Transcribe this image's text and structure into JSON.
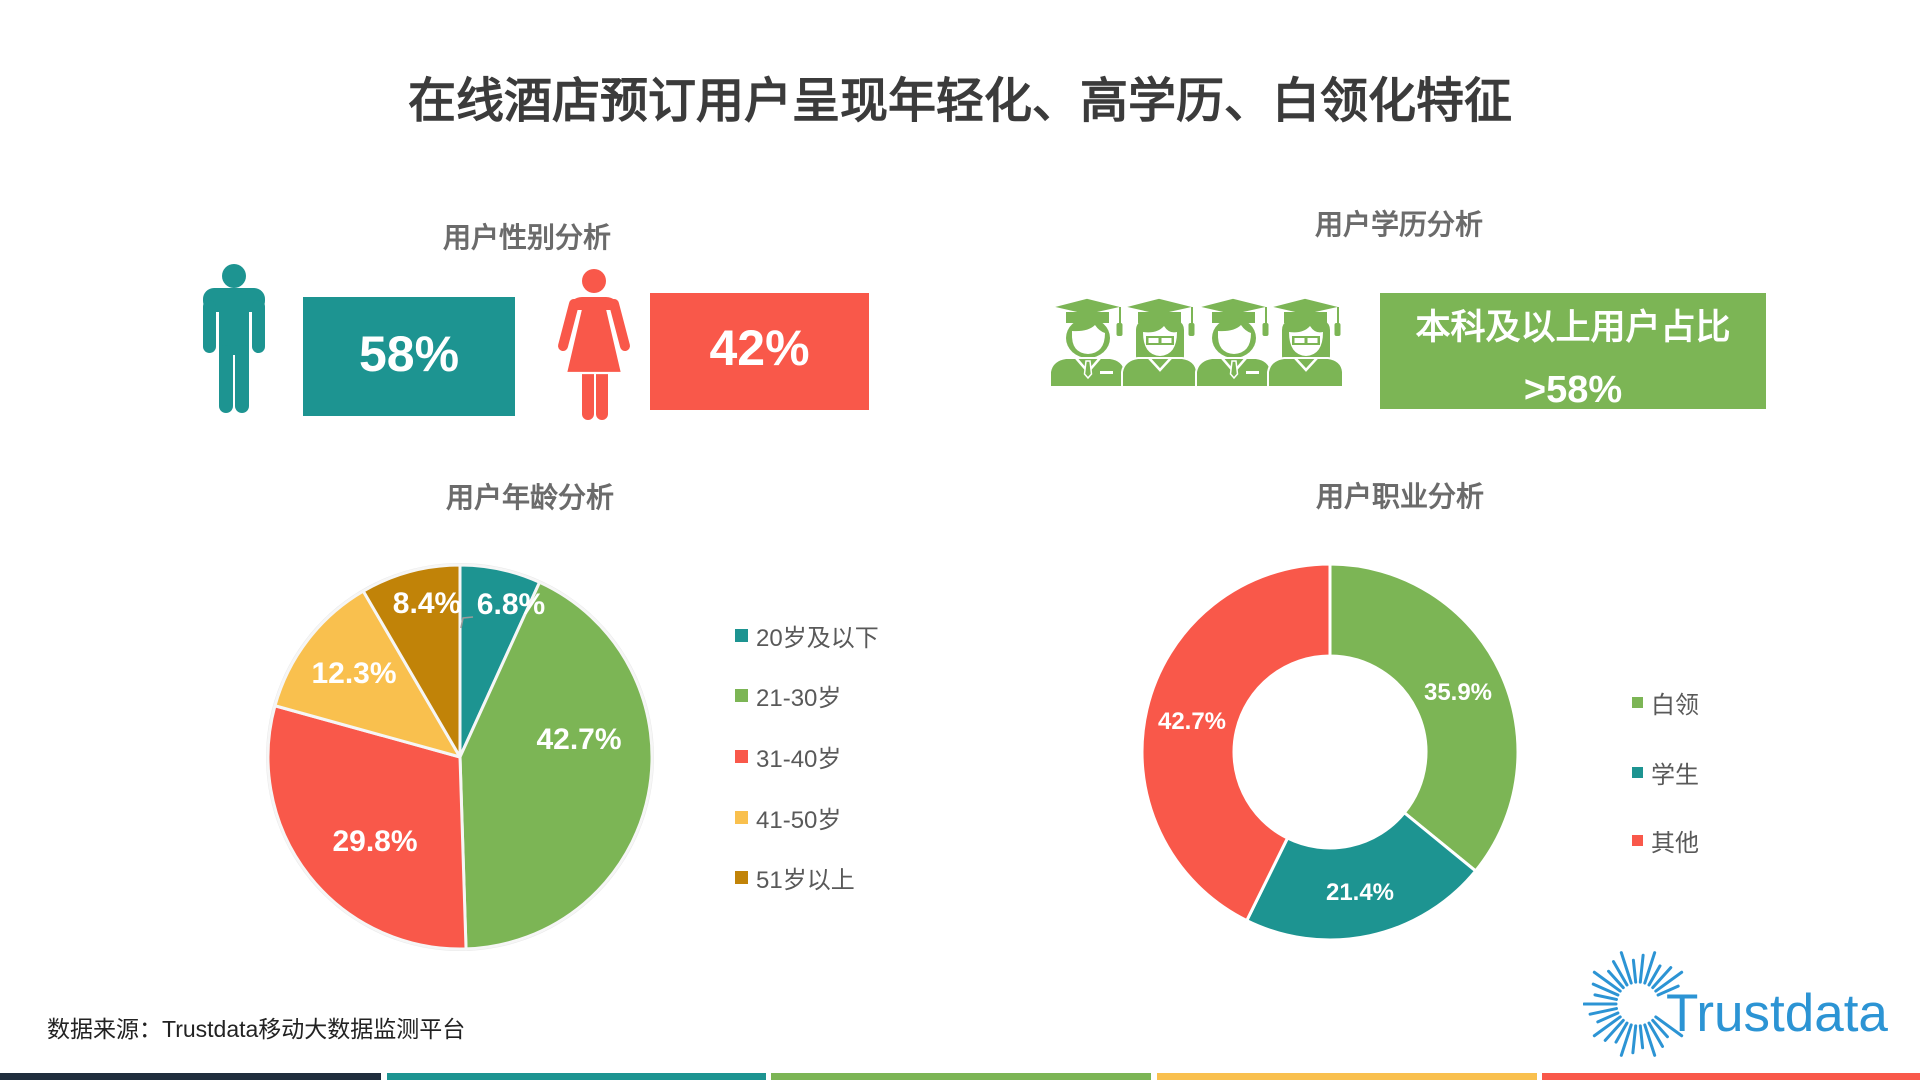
{
  "title": "在线酒店预订用户呈现年轻化、高学历、白领化特征",
  "gender": {
    "subtitle": "用户性别分析",
    "male": {
      "icon": "male-person-icon",
      "value": "58%",
      "color": "#1D9491"
    },
    "female": {
      "icon": "female-person-icon",
      "value": "42%",
      "color": "#F9584A"
    }
  },
  "education": {
    "subtitle": "用户学历分析",
    "icon": "graduates-icon",
    "label": "本科及以上用户占比",
    "value": ">58%",
    "color": "#7CB555"
  },
  "age": {
    "subtitle": "用户年龄分析"
  },
  "occupation": {
    "subtitle": "用户职业分析"
  },
  "source": "数据来源：Trustdata移动大数据监测平台",
  "logo": {
    "text": "Trustdata",
    "icon": "sunburst-icon",
    "color": "#2C94D4"
  },
  "bottom_bar": {
    "colors": [
      "#1F2D3D",
      "#1D9491",
      "#7CB555",
      "#F9C04E",
      "#F9584A"
    ]
  },
  "chart_data": [
    {
      "type": "pie",
      "title": "用户年龄分析",
      "categories": [
        "20岁及以下",
        "21-30岁",
        "31-40岁",
        "41-50岁",
        "51岁以上"
      ],
      "values": [
        6.8,
        42.7,
        29.8,
        12.3,
        8.4
      ],
      "labels": [
        "6.8%",
        "42.7%",
        "29.8%",
        "12.3%",
        "8.4%"
      ],
      "colors": [
        "#1D9491",
        "#7CB555",
        "#F9584A",
        "#F9C04E",
        "#C18308"
      ],
      "start_angle": "12 o'clock, clockwise",
      "legend_position": "right"
    },
    {
      "type": "pie",
      "subtype": "donut",
      "title": "用户职业分析",
      "categories": [
        "白领",
        "学生",
        "其他"
      ],
      "values": [
        35.9,
        21.4,
        42.7
      ],
      "labels": [
        "35.9%",
        "21.4%",
        "42.7%"
      ],
      "colors": [
        "#7CB555",
        "#1D9491",
        "#F9584A"
      ],
      "start_angle": "12 o'clock, clockwise",
      "legend_position": "right"
    }
  ]
}
